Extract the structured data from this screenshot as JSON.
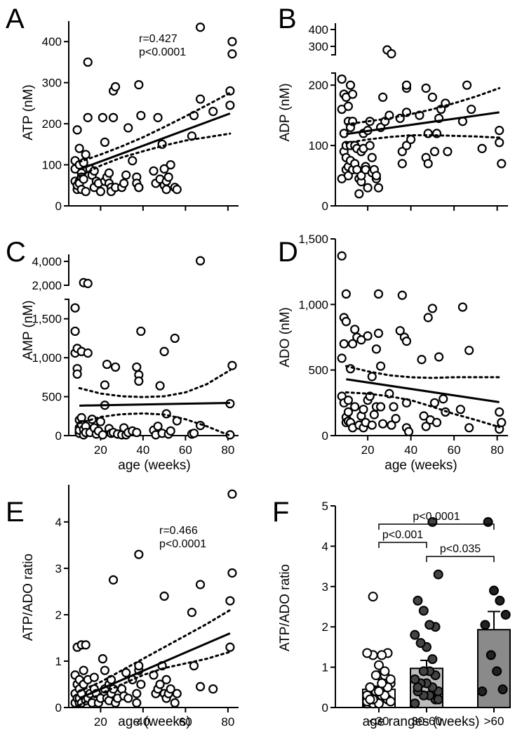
{
  "figure": {
    "panel_letters": [
      "A",
      "B",
      "C",
      "D",
      "E",
      "F"
    ]
  },
  "chart_data": [
    {
      "panel": "A",
      "type": "scatter",
      "title": "",
      "xlabel": "",
      "ylabel": "ATP (nM)",
      "xlim": [
        5,
        85
      ],
      "ylim": [
        0,
        450
      ],
      "yticks": [
        0,
        100,
        200,
        300,
        400
      ],
      "yticklabels": [
        "0",
        "100",
        "200",
        "300",
        "400"
      ],
      "xticks": [
        20,
        40,
        60,
        80
      ],
      "xticklabels": [],
      "annotation": [
        "r=0.427",
        "p<0.0001"
      ],
      "x": [
        8,
        8,
        8,
        9,
        9,
        9,
        10,
        10,
        10,
        10,
        11,
        11,
        11,
        12,
        12,
        13,
        13,
        14,
        14,
        15,
        16,
        17,
        17,
        18,
        19,
        20,
        21,
        22,
        22,
        23,
        24,
        24,
        25,
        25,
        26,
        26,
        27,
        27,
        30,
        31,
        32,
        33,
        35,
        37,
        37,
        38,
        38,
        38,
        39,
        45,
        46,
        47,
        48,
        49,
        50,
        50,
        51,
        51,
        52,
        53,
        55,
        56,
        63,
        64,
        67,
        67,
        73,
        81,
        81,
        82,
        82
      ],
      "y": [
        60,
        90,
        110,
        40,
        50,
        185,
        60,
        100,
        140,
        55,
        80,
        70,
        40,
        105,
        65,
        35,
        125,
        350,
        215,
        90,
        75,
        45,
        85,
        60,
        55,
        35,
        215,
        60,
        155,
        70,
        55,
        80,
        45,
        35,
        215,
        280,
        45,
        290,
        45,
        55,
        75,
        190,
        110,
        70,
        55,
        45,
        45,
        295,
        220,
        85,
        55,
        215,
        65,
        150,
        50,
        90,
        40,
        60,
        70,
        100,
        45,
        40,
        170,
        220,
        260,
        435,
        230,
        245,
        280,
        370,
        400
      ],
      "fit": {
        "x": [
          10,
          81
        ],
        "y": [
          89,
          225
        ]
      },
      "ci_upper": {
        "x": [
          10,
          20,
          30,
          40,
          50,
          60,
          70,
          81
        ],
        "y": [
          107,
          125,
          145,
          167,
          192,
          218,
          245,
          275
        ]
      },
      "ci_lower": {
        "x": [
          10,
          20,
          30,
          40,
          50,
          60,
          70,
          81
        ],
        "y": [
          72,
          98,
          118,
          133,
          147,
          159,
          167,
          176
        ]
      }
    },
    {
      "panel": "B",
      "type": "scatter",
      "title": "",
      "xlabel": "",
      "ylabel": "ADP (nM)",
      "xlim": [
        5,
        85
      ],
      "ylim": [
        0,
        420
      ],
      "axis_break": [
        260,
        270
      ],
      "yticks": [
        0,
        100,
        200,
        300,
        400
      ],
      "yticklabels": [
        "0",
        "100",
        "200",
        "300",
        "400"
      ],
      "xticks": [
        20,
        40,
        60,
        80
      ],
      "xticklabels": [],
      "x": [
        8,
        8,
        8,
        9,
        9,
        9,
        10,
        10,
        10,
        10,
        11,
        11,
        11,
        11,
        12,
        12,
        12,
        12,
        13,
        13,
        13,
        14,
        14,
        15,
        15,
        16,
        16,
        17,
        17,
        17,
        18,
        18,
        19,
        19,
        20,
        20,
        21,
        21,
        22,
        22,
        23,
        24,
        24,
        25,
        26,
        27,
        28,
        29,
        30,
        31,
        35,
        36,
        36,
        38,
        38,
        38,
        38,
        40,
        44,
        47,
        47,
        48,
        48,
        50,
        51,
        52,
        53,
        54,
        56,
        57,
        64,
        66,
        68,
        73,
        81,
        81,
        82
      ],
      "y": [
        210,
        160,
        45,
        185,
        90,
        120,
        100,
        180,
        60,
        80,
        165,
        140,
        65,
        50,
        75,
        100,
        130,
        200,
        60,
        185,
        140,
        100,
        70,
        60,
        95,
        20,
        45,
        40,
        50,
        90,
        95,
        120,
        65,
        60,
        30,
        125,
        140,
        100,
        80,
        55,
        60,
        45,
        50,
        30,
        130,
        180,
        140,
        280,
        150,
        270,
        145,
        90,
        70,
        155,
        195,
        200,
        100,
        110,
        150,
        195,
        80,
        120,
        70,
        180,
        90,
        120,
        145,
        160,
        170,
        90,
        140,
        200,
        160,
        95,
        125,
        105,
        70
      ],
      "fit": {
        "x": [
          10,
          81
        ],
        "y": [
          119,
          155
        ]
      },
      "ci_upper": {
        "x": [
          10,
          20,
          30,
          40,
          50,
          60,
          70,
          81
        ],
        "y": [
          135,
          140,
          145,
          152,
          160,
          170,
          181,
          195
        ]
      },
      "ci_lower": {
        "x": [
          10,
          20,
          30,
          40,
          50,
          60,
          70,
          81
        ],
        "y": [
          104,
          110,
          114,
          117,
          117,
          116,
          115,
          113
        ]
      }
    },
    {
      "panel": "C",
      "type": "scatter",
      "title": "",
      "xlabel": "age (weeks)",
      "ylabel": "AMP (nM)",
      "xlim": [
        5,
        85
      ],
      "ylim": [
        0,
        4200
      ],
      "yticks": [
        0,
        500,
        1000,
        1500,
        2000,
        4000
      ],
      "yticklabels": [
        "0",
        "500",
        "1,000",
        "1,500",
        "2,000",
        "4,000"
      ],
      "xticks": [
        20,
        40,
        60,
        80
      ],
      "xticklabels": [
        "20",
        "40",
        "60",
        "80"
      ],
      "x": [
        8,
        8,
        8,
        9,
        9,
        9,
        10,
        10,
        10,
        10,
        10,
        11,
        11,
        11,
        12,
        12,
        12,
        13,
        13,
        14,
        14,
        15,
        16,
        17,
        18,
        19,
        20,
        21,
        22,
        22,
        23,
        24,
        25,
        26,
        27,
        28,
        30,
        31,
        32,
        33,
        35,
        37,
        37,
        38,
        38,
        39,
        45,
        46,
        47,
        48,
        49,
        50,
        51,
        52,
        53,
        55,
        56,
        63,
        64,
        67,
        67,
        81,
        81,
        82
      ],
      "y": [
        1640,
        1340,
        1060,
        1120,
        860,
        790,
        100,
        200,
        50,
        30,
        70,
        1080,
        230,
        140,
        80,
        10,
        2150,
        120,
        40,
        2100,
        1060,
        40,
        210,
        100,
        20,
        60,
        180,
        10,
        650,
        390,
        915,
        90,
        30,
        40,
        880,
        20,
        10,
        100,
        10,
        40,
        60,
        40,
        880,
        780,
        700,
        1340,
        70,
        10,
        120,
        640,
        30,
        1080,
        280,
        20,
        60,
        1250,
        190,
        20,
        30,
        4050,
        130,
        10,
        410,
        900
      ],
      "fit": {
        "x": [
          10,
          81
        ],
        "y": [
          385,
          420
        ]
      },
      "ci_upper": {
        "x": [
          10,
          20,
          30,
          40,
          50,
          60,
          70,
          81
        ],
        "y": [
          610,
          540,
          505,
          495,
          505,
          555,
          660,
          840
        ]
      },
      "ci_lower": {
        "x": [
          10,
          20,
          30,
          40,
          50,
          60,
          70,
          81
        ],
        "y": [
          160,
          240,
          275,
          285,
          270,
          210,
          120,
          0
        ]
      }
    },
    {
      "panel": "D",
      "type": "scatter",
      "title": "",
      "xlabel": "age (weeks)",
      "ylabel": "ADO (nM)",
      "xlim": [
        5,
        85
      ],
      "ylim": [
        0,
        1500
      ],
      "yticks": [
        0,
        500,
        1000,
        1500
      ],
      "yticklabels": [
        "0",
        "500",
        "1,000",
        "1,500"
      ],
      "xticks": [
        20,
        40,
        60,
        80
      ],
      "xticklabels": [
        "20",
        "40",
        "60",
        "80"
      ],
      "x": [
        8,
        8,
        8,
        9,
        9,
        9,
        10,
        10,
        10,
        10,
        11,
        11,
        11,
        12,
        12,
        13,
        13,
        14,
        14,
        15,
        16,
        17,
        17,
        18,
        18,
        19,
        20,
        20,
        21,
        22,
        22,
        23,
        24,
        24,
        25,
        25,
        26,
        26,
        27,
        30,
        31,
        32,
        33,
        35,
        36,
        37,
        38,
        38,
        38,
        39,
        45,
        46,
        47,
        48,
        49,
        50,
        51,
        52,
        53,
        55,
        56,
        63,
        64,
        67,
        67,
        81,
        81,
        82
      ],
      "y": [
        1370,
        590,
        300,
        900,
        700,
        250,
        140,
        100,
        1080,
        870,
        270,
        180,
        110,
        510,
        100,
        700,
        60,
        810,
        220,
        750,
        80,
        150,
        730,
        200,
        60,
        100,
        760,
        270,
        300,
        80,
        450,
        160,
        660,
        220,
        1080,
        780,
        220,
        530,
        90,
        320,
        80,
        220,
        130,
        800,
        1070,
        750,
        250,
        60,
        720,
        30,
        580,
        150,
        70,
        900,
        120,
        970,
        250,
        100,
        600,
        280,
        180,
        200,
        980,
        650,
        60,
        50,
        180,
        100
      ],
      "fit": {
        "x": [
          10,
          81
        ],
        "y": [
          430,
          255
        ]
      },
      "ci_upper": {
        "x": [
          10,
          20,
          30,
          40,
          50,
          60,
          70,
          81
        ],
        "y": [
          530,
          490,
          460,
          445,
          440,
          445,
          445,
          445
        ]
      },
      "ci_lower": {
        "x": [
          10,
          20,
          30,
          40,
          50,
          60,
          70,
          81
        ],
        "y": [
          330,
          320,
          300,
          270,
          220,
          165,
          120,
          65
        ]
      }
    },
    {
      "panel": "E",
      "type": "scatter",
      "title": "",
      "xlabel": "age (weeks)",
      "ylabel": "ATP/ADO ratio",
      "xlim": [
        5,
        85
      ],
      "ylim": [
        0,
        4.8
      ],
      "yticks": [
        0,
        1,
        2,
        3,
        4
      ],
      "yticklabels": [
        "0",
        "1",
        "2",
        "3",
        "4"
      ],
      "xticks": [
        20,
        40,
        60,
        80
      ],
      "xticklabels": [
        "20",
        "40",
        "60",
        "80"
      ],
      "annotation": [
        "r=0.466",
        "p<0.0001"
      ],
      "x": [
        8,
        8,
        8,
        9,
        9,
        9,
        10,
        10,
        10,
        10,
        11,
        11,
        11,
        12,
        12,
        13,
        13,
        14,
        14,
        15,
        16,
        17,
        17,
        18,
        19,
        20,
        21,
        22,
        22,
        23,
        24,
        24,
        25,
        25,
        26,
        26,
        27,
        28,
        30,
        31,
        32,
        33,
        35,
        37,
        37,
        38,
        38,
        38,
        39,
        45,
        46,
        47,
        48,
        49,
        50,
        50,
        51,
        51,
        52,
        53,
        55,
        56,
        63,
        64,
        67,
        67,
        73,
        81,
        81,
        82,
        82
      ],
      "y": [
        0.3,
        0.7,
        0.1,
        0.5,
        0.2,
        1.3,
        0.1,
        0.4,
        0.2,
        0.6,
        1.35,
        0.3,
        0.1,
        0.8,
        0.5,
        0.15,
        1.35,
        0.2,
        0.6,
        0.3,
        0.1,
        0.4,
        0.65,
        0.3,
        0.1,
        0.2,
        1.05,
        0.4,
        0.8,
        0.2,
        0.5,
        0.15,
        0.3,
        0.6,
        2.75,
        0.4,
        0.1,
        0.2,
        0.4,
        0.25,
        0.75,
        0.2,
        0.6,
        0.3,
        0.1,
        3.3,
        0.8,
        0.9,
        0.5,
        0.7,
        0.3,
        0.4,
        0.5,
        0.9,
        0.3,
        2.4,
        0.2,
        0.6,
        0.3,
        0.4,
        0.1,
        0.3,
        2.05,
        0.9,
        2.65,
        0.45,
        0.4,
        1.3,
        2.3,
        2.9,
        4.6
      ],
      "fit": {
        "x": [
          10,
          81
        ],
        "y": [
          0.2,
          1.6
        ]
      },
      "ci_upper": {
        "x": [
          10,
          20,
          30,
          40,
          50,
          60,
          70,
          81
        ],
        "y": [
          0.35,
          0.55,
          0.8,
          1.05,
          1.3,
          1.55,
          1.8,
          2.1
        ]
      },
      "ci_lower": {
        "x": [
          10,
          20,
          30,
          40,
          50,
          60,
          70,
          81
        ],
        "y": [
          0.05,
          0.3,
          0.5,
          0.7,
          0.85,
          0.95,
          1.05,
          1.2
        ]
      }
    },
    {
      "panel": "F",
      "type": "bar",
      "title": "",
      "xlabel": "age ranges (weeks)",
      "ylabel": "ATP/ADO ratio",
      "categories": [
        "<30",
        "30-60",
        ">60"
      ],
      "values": [
        0.45,
        0.97,
        1.93
      ],
      "sem": [
        0.08,
        0.2,
        0.45
      ],
      "bar_colors": [
        "#ffffff",
        "#bdbdbd",
        "#8a8a8a"
      ],
      "ylim": [
        0,
        5
      ],
      "yticks": [
        0,
        1,
        2,
        3,
        4,
        5
      ],
      "yticklabels": [
        "0",
        "1",
        "2",
        "3",
        "4",
        "5"
      ],
      "points": [
        [
          0.1,
          0.2,
          0.3,
          0.4,
          0.5,
          0.6,
          0.7,
          0.8,
          0.1,
          0.15,
          0.2,
          0.3,
          0.4,
          0.5,
          0.6,
          0.8,
          0.1,
          0.2,
          0.3,
          0.5,
          0.6,
          0.4,
          0.2,
          0.7,
          0.9,
          1.05,
          1.3,
          1.35,
          1.35,
          1.3,
          0.8,
          0.5,
          0.15,
          0.3,
          0.4,
          2.75
        ],
        [
          0.1,
          0.2,
          0.3,
          0.3,
          0.4,
          0.4,
          0.5,
          0.6,
          0.6,
          0.7,
          0.8,
          0.9,
          0.9,
          0.5,
          0.2,
          1.2,
          1.5,
          1.6,
          1.8,
          2.0,
          2.05,
          2.4,
          2.65,
          3.3,
          4.6
        ],
        [
          0.4,
          0.45,
          0.9,
          1.3,
          2.05,
          2.3,
          2.65,
          2.9,
          4.6
        ]
      ],
      "point_fills": [
        "#ffffff",
        "#444444",
        "#222222"
      ],
      "comparisons": [
        {
          "from": 0,
          "to": 1,
          "label": "p<0.001"
        },
        {
          "from": 1,
          "to": 2,
          "label": "p<0.035"
        },
        {
          "from": 0,
          "to": 2,
          "label": "p<0.0001"
        }
      ]
    }
  ]
}
